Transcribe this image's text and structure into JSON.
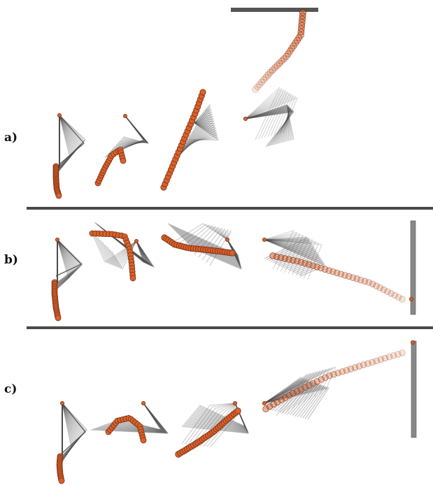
{
  "rows": [
    {
      "label": "a)"
    },
    {
      "label": "b)"
    },
    {
      "label": "c)"
    }
  ],
  "colors": {
    "link": "#4a4a4a",
    "bead": "#d9622b",
    "bead_stroke": "#7a2e12",
    "bar": "#555555",
    "divider": "#4a4a4a"
  }
}
